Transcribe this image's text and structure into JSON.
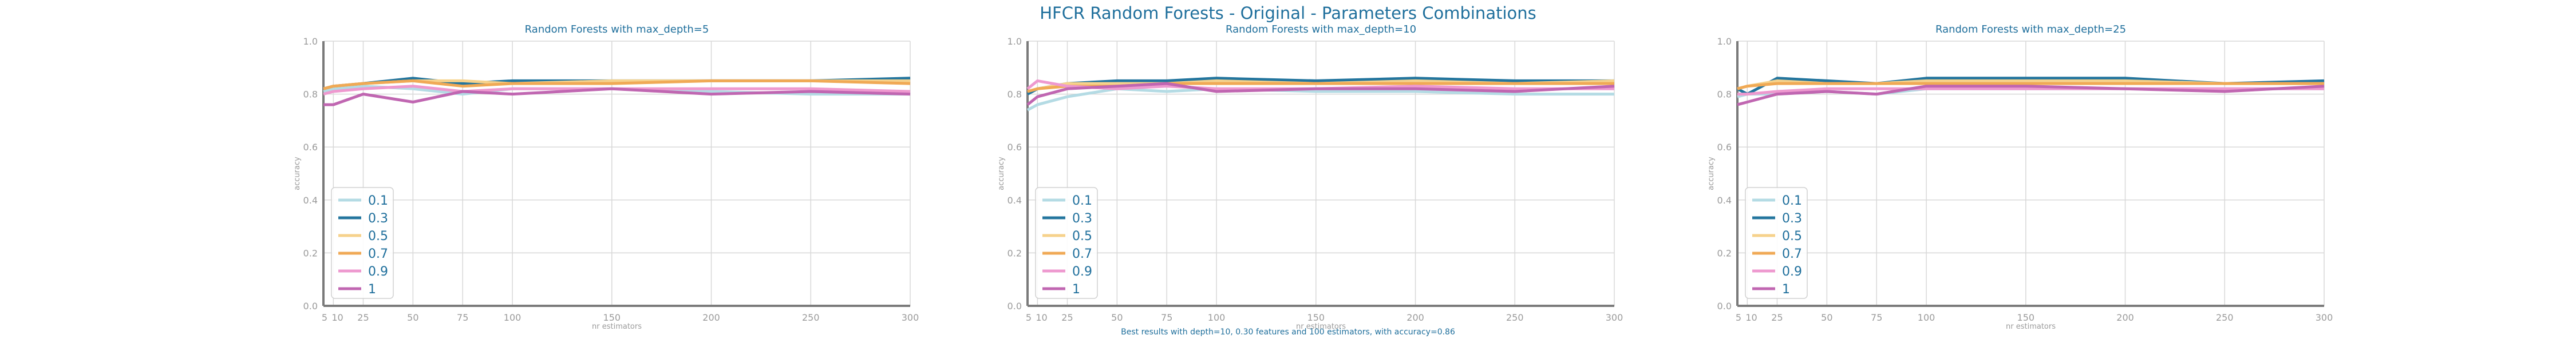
{
  "suptitle": "HFCR Random Forests - Original - Parameters Combinations",
  "footnote": "Best results with depth=10, 0.30 features and 100 estimators, with accuracy=0.86",
  "chart_data": [
    {
      "type": "line",
      "title": "Random Forests with max_depth=5",
      "xlabel": "nr estimators",
      "ylabel": "accuracy",
      "ylim": [
        0.0,
        1.0
      ],
      "yticks": [
        "0.0",
        "0.2",
        "0.4",
        "0.6",
        "0.8",
        "1.0"
      ],
      "xticks": [
        5,
        10,
        25,
        50,
        75,
        100,
        150,
        200,
        250,
        300
      ],
      "grid": true,
      "legend_position": "lower-left",
      "x": [
        5,
        10,
        25,
        50,
        75,
        100,
        150,
        200,
        250,
        300
      ],
      "series": [
        {
          "name": "0.1",
          "color": "#b4dbe4",
          "values": [
            0.81,
            0.82,
            0.83,
            0.82,
            0.8,
            0.82,
            0.82,
            0.81,
            0.8,
            0.8
          ]
        },
        {
          "name": "0.3",
          "color": "#23759e",
          "values": [
            0.82,
            0.83,
            0.84,
            0.86,
            0.84,
            0.85,
            0.85,
            0.85,
            0.85,
            0.86
          ]
        },
        {
          "name": "0.5",
          "color": "#f6d28c",
          "values": [
            0.82,
            0.83,
            0.84,
            0.85,
            0.85,
            0.84,
            0.85,
            0.85,
            0.85,
            0.85
          ]
        },
        {
          "name": "0.7",
          "color": "#f0a955",
          "values": [
            0.82,
            0.83,
            0.84,
            0.85,
            0.83,
            0.84,
            0.84,
            0.85,
            0.85,
            0.84
          ]
        },
        {
          "name": "0.9",
          "color": "#ee99cf",
          "values": [
            0.8,
            0.81,
            0.82,
            0.83,
            0.81,
            0.82,
            0.82,
            0.82,
            0.82,
            0.81
          ]
        },
        {
          "name": "1",
          "color": "#c066b1",
          "values": [
            0.76,
            0.76,
            0.8,
            0.77,
            0.81,
            0.8,
            0.82,
            0.8,
            0.81,
            0.8
          ]
        }
      ]
    },
    {
      "type": "line",
      "title": "Random Forests with max_depth=10",
      "xlabel": "nr estimators",
      "ylabel": "accuracy",
      "ylim": [
        0.0,
        1.0
      ],
      "yticks": [
        "0.0",
        "0.2",
        "0.4",
        "0.6",
        "0.8",
        "1.0"
      ],
      "xticks": [
        5,
        10,
        25,
        50,
        75,
        100,
        150,
        200,
        250,
        300
      ],
      "grid": true,
      "legend_position": "lower-left",
      "x": [
        5,
        10,
        25,
        50,
        75,
        100,
        150,
        200,
        250,
        300
      ],
      "series": [
        {
          "name": "0.1",
          "color": "#b4dbe4",
          "values": [
            0.74,
            0.76,
            0.79,
            0.82,
            0.81,
            0.82,
            0.81,
            0.81,
            0.8,
            0.8
          ]
        },
        {
          "name": "0.3",
          "color": "#23759e",
          "values": [
            0.8,
            0.82,
            0.84,
            0.85,
            0.85,
            0.86,
            0.85,
            0.86,
            0.85,
            0.85
          ]
        },
        {
          "name": "0.5",
          "color": "#f6d28c",
          "values": [
            0.81,
            0.82,
            0.84,
            0.84,
            0.84,
            0.85,
            0.84,
            0.85,
            0.84,
            0.85
          ]
        },
        {
          "name": "0.7",
          "color": "#f0a955",
          "values": [
            0.81,
            0.82,
            0.83,
            0.83,
            0.84,
            0.84,
            0.84,
            0.84,
            0.84,
            0.84
          ]
        },
        {
          "name": "0.9",
          "color": "#ee99cf",
          "values": [
            0.82,
            0.85,
            0.83,
            0.82,
            0.83,
            0.82,
            0.82,
            0.83,
            0.82,
            0.82
          ]
        },
        {
          "name": "1",
          "color": "#c066b1",
          "values": [
            0.76,
            0.79,
            0.82,
            0.83,
            0.84,
            0.81,
            0.82,
            0.82,
            0.81,
            0.83
          ]
        }
      ]
    },
    {
      "type": "line",
      "title": "Random Forests with max_depth=25",
      "xlabel": "nr estimators",
      "ylabel": "accuracy",
      "ylim": [
        0.0,
        1.0
      ],
      "yticks": [
        "0.0",
        "0.2",
        "0.4",
        "0.6",
        "0.8",
        "1.0"
      ],
      "xticks": [
        5,
        10,
        25,
        50,
        75,
        100,
        150,
        200,
        250,
        300
      ],
      "grid": true,
      "legend_position": "lower-left",
      "x": [
        5,
        10,
        25,
        50,
        75,
        100,
        150,
        200,
        250,
        300
      ],
      "series": [
        {
          "name": "0.1",
          "color": "#b4dbe4",
          "values": [
            0.79,
            0.8,
            0.8,
            0.81,
            0.8,
            0.82,
            0.82,
            0.82,
            0.82,
            0.82
          ]
        },
        {
          "name": "0.3",
          "color": "#23759e",
          "values": [
            0.82,
            0.8,
            0.86,
            0.85,
            0.84,
            0.86,
            0.86,
            0.86,
            0.84,
            0.85
          ]
        },
        {
          "name": "0.5",
          "color": "#f6d28c",
          "values": [
            0.82,
            0.83,
            0.85,
            0.84,
            0.84,
            0.85,
            0.85,
            0.85,
            0.84,
            0.84
          ]
        },
        {
          "name": "0.7",
          "color": "#f0a955",
          "values": [
            0.82,
            0.83,
            0.84,
            0.84,
            0.84,
            0.84,
            0.84,
            0.84,
            0.84,
            0.84
          ]
        },
        {
          "name": "0.9",
          "color": "#ee99cf",
          "values": [
            0.8,
            0.8,
            0.81,
            0.82,
            0.82,
            0.82,
            0.82,
            0.82,
            0.82,
            0.82
          ]
        },
        {
          "name": "1",
          "color": "#c066b1",
          "values": [
            0.76,
            0.77,
            0.8,
            0.81,
            0.8,
            0.83,
            0.83,
            0.82,
            0.81,
            0.83
          ]
        }
      ]
    }
  ]
}
